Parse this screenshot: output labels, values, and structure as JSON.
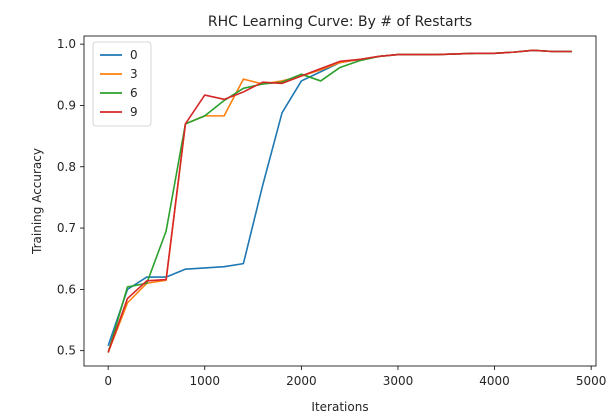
{
  "chart_data": {
    "type": "line",
    "title": "RHC Learning Curve: By # of Restarts",
    "xlabel": "Iterations",
    "ylabel": "Training Accuracy",
    "xlim": [
      -250,
      5050
    ],
    "ylim": [
      0.475,
      1.0133
    ],
    "xticks": [
      0,
      1000,
      2000,
      3000,
      4000,
      5000
    ],
    "yticks": [
      0.5,
      0.6,
      0.7,
      0.8,
      0.9,
      1.0
    ],
    "ytick_labels": [
      "0.5",
      "0.6",
      "0.7",
      "0.8",
      "0.9",
      "1.0"
    ],
    "grid": false,
    "legend": "top-left",
    "x": [
      0,
      200,
      400,
      600,
      800,
      1000,
      1200,
      1400,
      1600,
      1800,
      2000,
      2200,
      2400,
      2600,
      2800,
      3000,
      3200,
      3400,
      3600,
      3800,
      4000,
      4200,
      4400,
      4600,
      4800
    ],
    "series": [
      {
        "name": "0",
        "color": "#1f77b4",
        "values": [
          0.508,
          0.6,
          0.62,
          0.62,
          0.633,
          0.635,
          0.637,
          0.642,
          0.77,
          0.888,
          0.94,
          0.955,
          0.97,
          0.975,
          0.98,
          0.983,
          0.983,
          0.983,
          0.984,
          0.985,
          0.985,
          0.987,
          0.99,
          0.988,
          0.988
        ]
      },
      {
        "name": "3",
        "color": "#ff7f0e",
        "values": [
          0.497,
          0.578,
          0.61,
          0.615,
          0.87,
          0.883,
          0.883,
          0.943,
          0.935,
          0.94,
          0.948,
          0.958,
          0.97,
          0.975,
          0.98,
          0.983,
          0.983,
          0.983,
          0.984,
          0.985,
          0.985,
          0.987,
          0.99,
          0.988,
          0.988
        ]
      },
      {
        "name": "6",
        "color": "#2ca02c",
        "values": [
          0.497,
          0.604,
          0.61,
          0.695,
          0.87,
          0.883,
          0.908,
          0.928,
          0.935,
          0.938,
          0.951,
          0.94,
          0.962,
          0.973,
          0.98,
          0.983,
          0.983,
          0.983,
          0.984,
          0.985,
          0.985,
          0.987,
          0.99,
          0.988,
          0.988
        ]
      },
      {
        "name": "9",
        "color": "#d62728",
        "values": [
          0.497,
          0.585,
          0.614,
          0.616,
          0.87,
          0.917,
          0.91,
          0.922,
          0.938,
          0.936,
          0.948,
          0.96,
          0.972,
          0.975,
          0.98,
          0.983,
          0.983,
          0.983,
          0.984,
          0.985,
          0.985,
          0.987,
          0.99,
          0.988,
          0.988
        ]
      }
    ]
  }
}
